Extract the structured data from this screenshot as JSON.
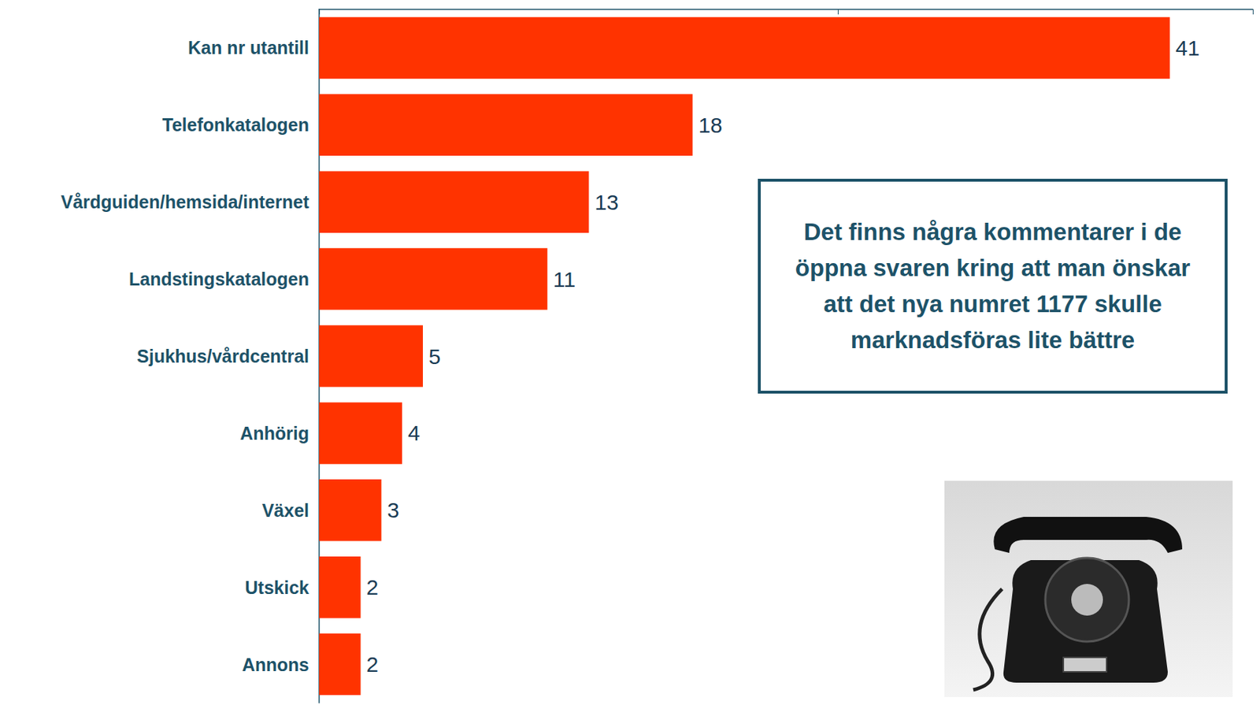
{
  "chart_data": {
    "type": "bar",
    "orientation": "horizontal",
    "categories": [
      "Kan nr utantill",
      "Telefonkatalogen",
      "Vårdguiden/hemsida/internet",
      "Landstingskatalogen",
      "Sjukhus/vårdcentral",
      "Anhörig",
      "Växel",
      "Utskick",
      "Annons"
    ],
    "values": [
      41,
      18,
      13,
      11,
      5,
      4,
      3,
      2,
      2
    ],
    "color": "#ff3300",
    "xlim": [
      0,
      45
    ],
    "xticks": [
      0,
      25
    ],
    "grid": false,
    "data_labels": true,
    "tick_labels": "y",
    "annotations": [
      "Det finns några kommentarer i de öppna svaren kring att man önskar att det nya numret 1177 skulle marknadsföras lite bättre"
    ]
  }
}
